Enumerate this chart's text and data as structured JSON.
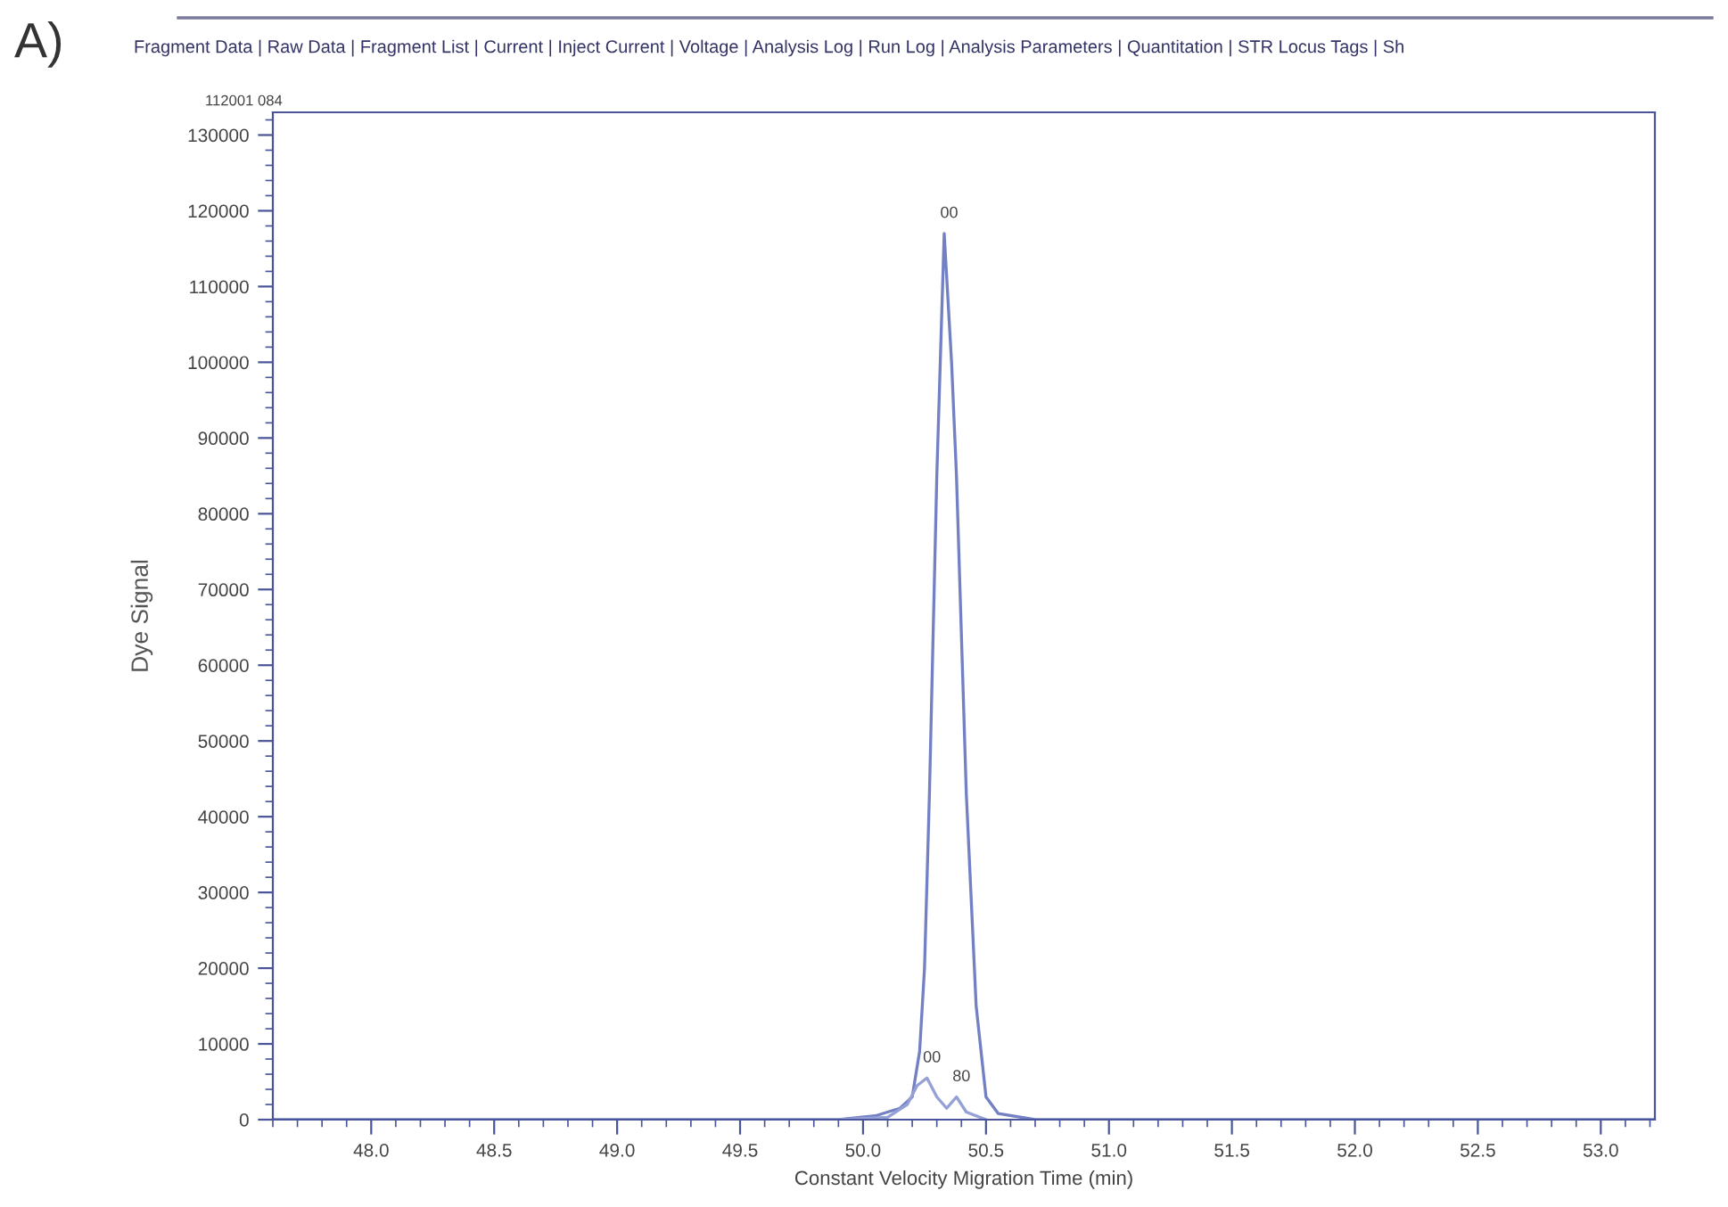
{
  "chart_data": {
    "type": "line",
    "xlabel": "Constant Velocity Migration Time (min)",
    "ylabel": "Dye Signal",
    "xlim": [
      47.6,
      53.22
    ],
    "ylim": [
      0,
      133000
    ],
    "xticks": [
      {
        "value": 48.0,
        "label": "48.0"
      },
      48.5,
      {
        "value": 49.0,
        "label": "49.0"
      },
      49.5,
      {
        "value": 50.0,
        "label": "50.0"
      },
      50.5,
      {
        "value": 51.0,
        "label": "51.0"
      },
      51.5,
      {
        "value": 52.0,
        "label": "52.0"
      },
      52.5,
      {
        "value": 53.0,
        "label": "53.0"
      }
    ],
    "yticks": [
      0,
      10000,
      20000,
      30000,
      40000,
      50000,
      60000,
      70000,
      80000,
      90000,
      100000,
      110000,
      120000,
      130000
    ],
    "grid": false,
    "marker": "none",
    "line_style": "solid",
    "series": [
      {
        "color": "#7381c4",
        "x": [
          47.6,
          48.0,
          48.5,
          49.0,
          49.5,
          49.9,
          50.05,
          50.15,
          50.2,
          50.23,
          50.25,
          50.27,
          50.3,
          50.33,
          50.36,
          50.38,
          50.42,
          50.46,
          50.5,
          50.55,
          50.7,
          51.0,
          51.5,
          52.0,
          52.5,
          53.0,
          53.22
        ],
        "values": [
          0,
          0,
          0,
          0,
          0,
          0,
          500,
          1500,
          3000,
          9000,
          20000,
          43000,
          85000,
          117000,
          100000,
          85000,
          43000,
          15000,
          3000,
          800,
          0,
          0,
          0,
          0,
          0,
          0,
          0
        ]
      },
      {
        "color": "#95a1d6",
        "x": [
          49.9,
          50.1,
          50.18,
          50.22,
          50.26,
          50.3,
          50.34,
          50.38,
          50.42,
          50.5
        ],
        "values": [
          0,
          300,
          2000,
          4500,
          5500,
          3000,
          1500,
          3000,
          1000,
          0
        ]
      }
    ],
    "annotations": [
      "A)",
      "Fragment Data | Raw Data | Fragment List | Current | Inject Current | Voltage | Analysis Log | Run Log | Analysis Parameters | Quantitation | STR Locus Tags | Sh",
      "112001 084",
      {
        "text": "00",
        "x": 50.33,
        "y": 117000
      },
      {
        "text": "00",
        "x": 50.26,
        "y": 5500
      },
      {
        "text": "80",
        "x": 50.38,
        "y": 3000
      }
    ]
  }
}
